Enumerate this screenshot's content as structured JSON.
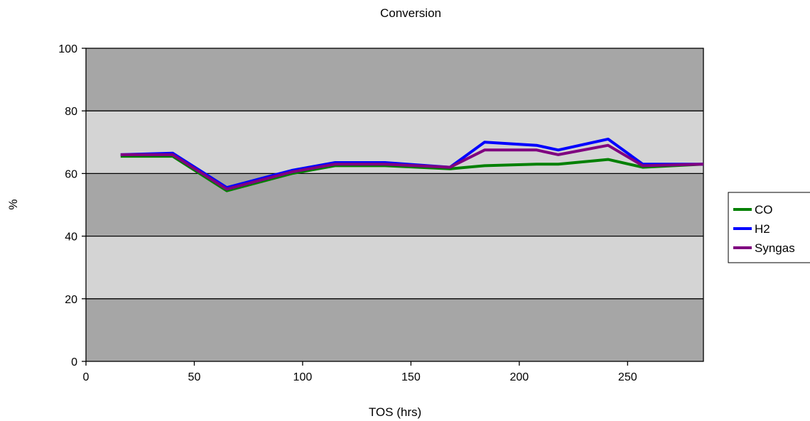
{
  "chart_data": {
    "type": "line",
    "title": "Conversion",
    "xlabel": "TOS (hrs)",
    "ylabel": "%",
    "xlim": [
      0,
      285
    ],
    "ylim": [
      0,
      100
    ],
    "x_ticks": [
      0,
      50,
      100,
      150,
      200,
      250
    ],
    "y_ticks": [
      0,
      20,
      40,
      60,
      80,
      100
    ],
    "grid": true,
    "band_colors": [
      "#a6a6a6",
      "#d4d4d4"
    ],
    "legend_position": "right",
    "series": [
      {
        "name": "CO",
        "color": "#008000",
        "points": [
          [
            16,
            65.5
          ],
          [
            40,
            65.5
          ],
          [
            65,
            54.5
          ],
          [
            95,
            60
          ],
          [
            115,
            62.5
          ],
          [
            138,
            62.5
          ],
          [
            168,
            61.5
          ],
          [
            184,
            62.5
          ],
          [
            208,
            63
          ],
          [
            218,
            63
          ],
          [
            241,
            64.5
          ],
          [
            257,
            62
          ],
          [
            285,
            63
          ]
        ]
      },
      {
        "name": "H2",
        "color": "#0000ff",
        "points": [
          [
            16,
            66
          ],
          [
            40,
            66.5
          ],
          [
            65,
            55.5
          ],
          [
            95,
            61
          ],
          [
            115,
            63.5
          ],
          [
            138,
            63.5
          ],
          [
            168,
            62
          ],
          [
            184,
            70
          ],
          [
            208,
            69
          ],
          [
            218,
            67.5
          ],
          [
            241,
            71
          ],
          [
            257,
            63
          ],
          [
            285,
            63
          ]
        ]
      },
      {
        "name": "Syngas",
        "color": "#800080",
        "points": [
          [
            16,
            66
          ],
          [
            40,
            66
          ],
          [
            65,
            55
          ],
          [
            95,
            60.5
          ],
          [
            115,
            63
          ],
          [
            138,
            63
          ],
          [
            168,
            62
          ],
          [
            184,
            67.5
          ],
          [
            208,
            67.5
          ],
          [
            218,
            66
          ],
          [
            241,
            69
          ],
          [
            257,
            62.5
          ],
          [
            285,
            63
          ]
        ]
      }
    ]
  }
}
